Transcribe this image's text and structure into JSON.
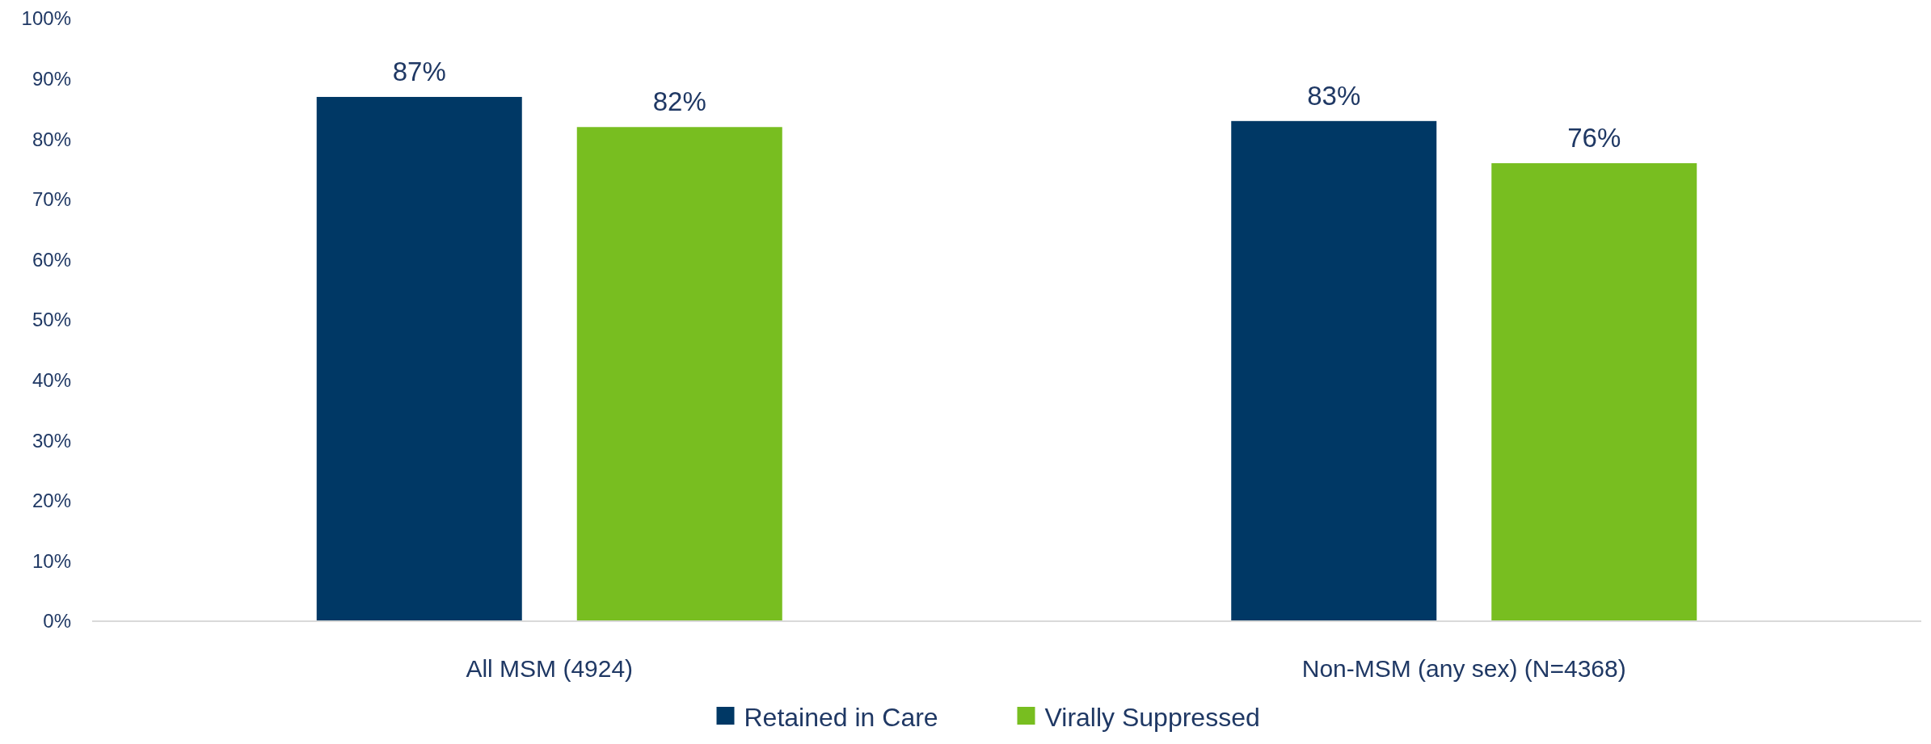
{
  "chart_data": {
    "type": "bar",
    "categories": [
      "All MSM (4924)",
      "Non-MSM (any sex) (N=4368)"
    ],
    "series": [
      {
        "name": "Retained in Care",
        "color": "#003865",
        "values": [
          87,
          83
        ]
      },
      {
        "name": "Virally Suppressed",
        "color": "#78be20",
        "values": [
          82,
          76
        ]
      }
    ],
    "ylim": [
      0,
      100
    ],
    "yticks": [
      {
        "value": 0,
        "label": "0%"
      },
      {
        "value": 10,
        "label": "10%"
      },
      {
        "value": 20,
        "label": "20%"
      },
      {
        "value": 30,
        "label": "30%"
      },
      {
        "value": 40,
        "label": "40%"
      },
      {
        "value": 50,
        "label": "50%"
      },
      {
        "value": 60,
        "label": "60%"
      },
      {
        "value": 70,
        "label": "70%"
      },
      {
        "value": 80,
        "label": "80%"
      },
      {
        "value": 90,
        "label": "90%"
      },
      {
        "value": 100,
        "label": "100%"
      }
    ],
    "value_labels": [
      [
        "87%",
        "83%"
      ],
      [
        "82%",
        "76%"
      ]
    ],
    "grid": false,
    "legend": "bottom"
  }
}
